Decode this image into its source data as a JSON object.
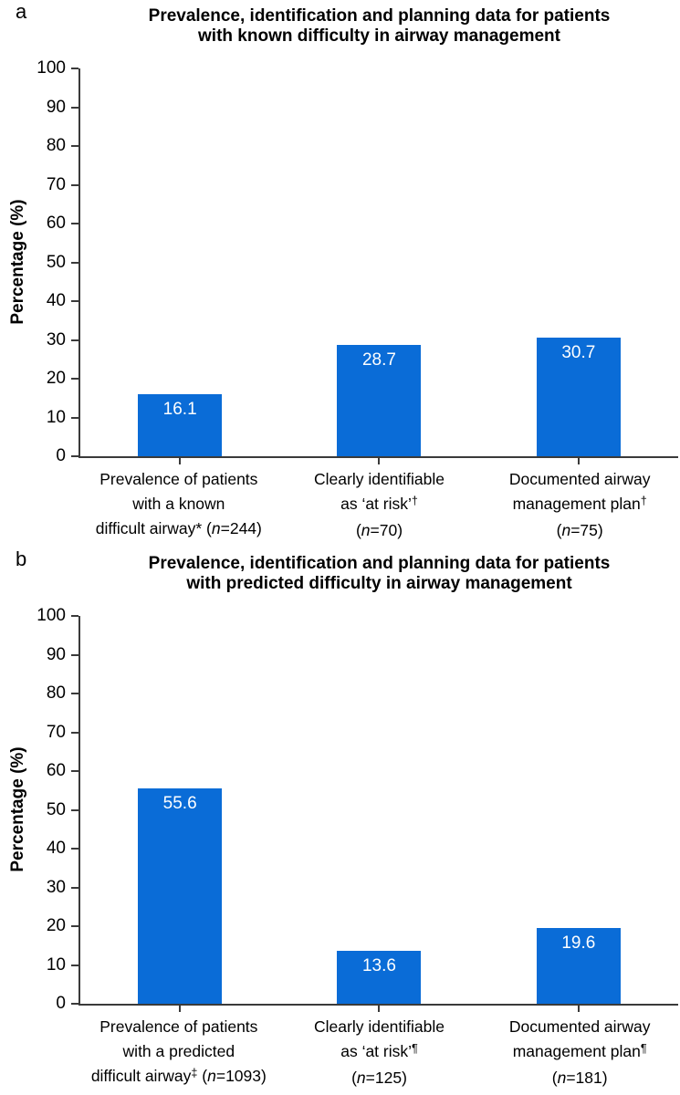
{
  "chart_data": [
    {
      "type": "bar",
      "panel_letter": "a",
      "title": "Prevalence, identification and planning data for patients with known difficulty in airway management",
      "title_lines": [
        "Prevalence, identification and planning data for patients",
        "with known difficulty in airway management"
      ],
      "ylabel": "Percentage (%)",
      "xlabel": "",
      "ylim": [
        0,
        100
      ],
      "ytick_values": [
        0,
        10,
        20,
        30,
        40,
        50,
        60,
        70,
        80,
        90,
        100
      ],
      "grid": "off",
      "legend": "none",
      "bar_color": "#0a6cd7",
      "axis_color": "#3a3a3a",
      "value_label_color": "#ffffff",
      "categories": [
        "Prevalence of patients with a known difficult airway* (n=244)",
        "Clearly identifiable as ‘at risk’† (n=70)",
        "Documented airway management plan† (n=75)"
      ],
      "values": [
        16.1,
        28.7,
        30.7
      ],
      "value_labels": [
        "16.1",
        "28.7",
        "30.7"
      ],
      "category_lines": [
        [
          [
            [
              "p",
              "Prevalence of patients"
            ]
          ],
          [
            [
              "p",
              "with a known"
            ]
          ],
          [
            [
              "p",
              "difficult airway* ("
            ],
            [
              "i",
              "n"
            ],
            [
              "p",
              "=244)"
            ]
          ]
        ],
        [
          [
            [
              "p",
              "Clearly identifiable"
            ]
          ],
          [
            [
              "p",
              "as ‘at risk’"
            ],
            [
              "s",
              "†"
            ]
          ],
          [
            [
              "p",
              "("
            ],
            [
              "i",
              "n"
            ],
            [
              "p",
              "=70)"
            ]
          ]
        ],
        [
          [
            [
              "p",
              "Documented airway"
            ]
          ],
          [
            [
              "p",
              "management plan"
            ],
            [
              "s",
              "†"
            ]
          ],
          [
            [
              "p",
              "("
            ],
            [
              "i",
              "n"
            ],
            [
              "p",
              "=75)"
            ]
          ]
        ]
      ]
    },
    {
      "type": "bar",
      "panel_letter": "b",
      "title": "Prevalence, identification and planning data for patients with predicted difficulty in airway management",
      "title_lines": [
        "Prevalence, identification and planning data for patients",
        "with predicted difficulty in airway management"
      ],
      "ylabel": "Percentage (%)",
      "xlabel": "",
      "ylim": [
        0,
        100
      ],
      "ytick_values": [
        0,
        10,
        20,
        30,
        40,
        50,
        60,
        70,
        80,
        90,
        100
      ],
      "grid": "off",
      "legend": "none",
      "bar_color": "#0a6cd7",
      "axis_color": "#3a3a3a",
      "value_label_color": "#ffffff",
      "categories": [
        "Prevalence of patients with a predicted difficult airway‡ (n=1093)",
        "Clearly identifiable as ‘at risk’¶ (n=125)",
        "Documented airway management plan¶ (n=181)"
      ],
      "values": [
        55.6,
        13.6,
        19.6
      ],
      "value_labels": [
        "55.6",
        "13.6",
        "19.6"
      ],
      "category_lines": [
        [
          [
            [
              "p",
              "Prevalence of patients"
            ]
          ],
          [
            [
              "p",
              "with a predicted"
            ]
          ],
          [
            [
              "p",
              "difficult airway"
            ],
            [
              "s",
              "‡"
            ],
            [
              "p",
              " ("
            ],
            [
              "i",
              "n"
            ],
            [
              "p",
              "=1093)"
            ]
          ]
        ],
        [
          [
            [
              "p",
              "Clearly identifiable"
            ]
          ],
          [
            [
              "p",
              "as ‘at risk’"
            ],
            [
              "s",
              "¶"
            ]
          ],
          [
            [
              "p",
              "("
            ],
            [
              "i",
              "n"
            ],
            [
              "p",
              "=125)"
            ]
          ]
        ],
        [
          [
            [
              "p",
              "Documented airway"
            ]
          ],
          [
            [
              "p",
              "management plan"
            ],
            [
              "s",
              "¶"
            ]
          ],
          [
            [
              "p",
              "("
            ],
            [
              "i",
              "n"
            ],
            [
              "p",
              "=181)"
            ]
          ]
        ]
      ]
    }
  ]
}
